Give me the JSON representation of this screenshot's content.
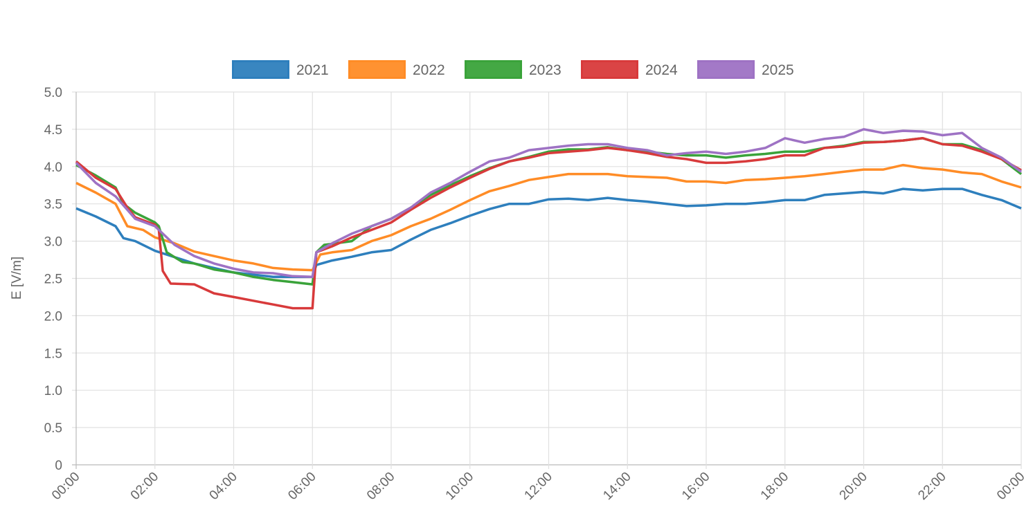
{
  "chart_data": {
    "type": "line",
    "title": "",
    "xlabel": "",
    "ylabel": "E [V/m]",
    "xlim": [
      0,
      24
    ],
    "ylim": [
      0,
      5
    ],
    "grid": true,
    "legend_position": "top-center",
    "x_tick_labels": [
      "00:00",
      "02:00",
      "04:00",
      "06:00",
      "08:00",
      "10:00",
      "12:00",
      "14:00",
      "16:00",
      "18:00",
      "20:00",
      "22:00",
      "00:00"
    ],
    "y_tick_labels": [
      "0",
      "0.5",
      "1.0",
      "1.5",
      "2.0",
      "2.5",
      "3.0",
      "3.5",
      "4.0",
      "4.5",
      "5.0"
    ],
    "x_unit": "hours",
    "series": [
      {
        "name": "2021",
        "color": "#2e7fbd",
        "points": [
          [
            0,
            3.44
          ],
          [
            0.5,
            3.33
          ],
          [
            1,
            3.2
          ],
          [
            1.2,
            3.04
          ],
          [
            1.5,
            3.0
          ],
          [
            2,
            2.87
          ],
          [
            3,
            2.7
          ],
          [
            4,
            2.58
          ],
          [
            5,
            2.52
          ],
          [
            6,
            2.52
          ],
          [
            6.1,
            2.68
          ],
          [
            6.5,
            2.74
          ],
          [
            7,
            2.79
          ],
          [
            7.5,
            2.85
          ],
          [
            8,
            2.88
          ],
          [
            8.5,
            3.02
          ],
          [
            9,
            3.15
          ],
          [
            9.5,
            3.24
          ],
          [
            10,
            3.34
          ],
          [
            10.5,
            3.43
          ],
          [
            11,
            3.5
          ],
          [
            11.5,
            3.5
          ],
          [
            12,
            3.56
          ],
          [
            12.5,
            3.57
          ],
          [
            13,
            3.55
          ],
          [
            13.5,
            3.58
          ],
          [
            14,
            3.55
          ],
          [
            14.5,
            3.53
          ],
          [
            15,
            3.5
          ],
          [
            15.5,
            3.47
          ],
          [
            16,
            3.48
          ],
          [
            16.5,
            3.5
          ],
          [
            17,
            3.5
          ],
          [
            17.5,
            3.52
          ],
          [
            18,
            3.55
          ],
          [
            18.5,
            3.55
          ],
          [
            19,
            3.62
          ],
          [
            19.5,
            3.64
          ],
          [
            20,
            3.66
          ],
          [
            20.5,
            3.64
          ],
          [
            21,
            3.7
          ],
          [
            21.5,
            3.68
          ],
          [
            22,
            3.7
          ],
          [
            22.5,
            3.7
          ],
          [
            23,
            3.62
          ],
          [
            23.5,
            3.55
          ],
          [
            24,
            3.44
          ]
        ]
      },
      {
        "name": "2022",
        "color": "#ff8c26",
        "points": [
          [
            0,
            3.78
          ],
          [
            0.5,
            3.65
          ],
          [
            1,
            3.5
          ],
          [
            1.3,
            3.2
          ],
          [
            1.7,
            3.15
          ],
          [
            2,
            3.05
          ],
          [
            2.5,
            2.97
          ],
          [
            3,
            2.86
          ],
          [
            3.5,
            2.8
          ],
          [
            4,
            2.74
          ],
          [
            4.5,
            2.7
          ],
          [
            5,
            2.64
          ],
          [
            5.5,
            2.62
          ],
          [
            6,
            2.61
          ],
          [
            6.2,
            2.82
          ],
          [
            6.5,
            2.85
          ],
          [
            7,
            2.88
          ],
          [
            7.5,
            3.0
          ],
          [
            8,
            3.08
          ],
          [
            8.5,
            3.2
          ],
          [
            9,
            3.3
          ],
          [
            9.5,
            3.42
          ],
          [
            10,
            3.55
          ],
          [
            10.5,
            3.67
          ],
          [
            11,
            3.74
          ],
          [
            11.5,
            3.82
          ],
          [
            12,
            3.86
          ],
          [
            12.5,
            3.9
          ],
          [
            13,
            3.9
          ],
          [
            13.5,
            3.9
          ],
          [
            14,
            3.87
          ],
          [
            14.5,
            3.86
          ],
          [
            15,
            3.85
          ],
          [
            15.5,
            3.8
          ],
          [
            16,
            3.8
          ],
          [
            16.5,
            3.78
          ],
          [
            17,
            3.82
          ],
          [
            17.5,
            3.83
          ],
          [
            18,
            3.85
          ],
          [
            18.5,
            3.87
          ],
          [
            19,
            3.9
          ],
          [
            19.5,
            3.93
          ],
          [
            20,
            3.96
          ],
          [
            20.5,
            3.96
          ],
          [
            21,
            4.02
          ],
          [
            21.5,
            3.98
          ],
          [
            22,
            3.96
          ],
          [
            22.5,
            3.92
          ],
          [
            23,
            3.9
          ],
          [
            23.5,
            3.8
          ],
          [
            24,
            3.72
          ]
        ]
      },
      {
        "name": "2023",
        "color": "#3aa33a",
        "points": [
          [
            0,
            4.02
          ],
          [
            0.5,
            3.88
          ],
          [
            1,
            3.72
          ],
          [
            1.2,
            3.5
          ],
          [
            1.5,
            3.38
          ],
          [
            2,
            3.25
          ],
          [
            2.1,
            3.2
          ],
          [
            2.3,
            2.85
          ],
          [
            2.7,
            2.72
          ],
          [
            3,
            2.7
          ],
          [
            3.5,
            2.62
          ],
          [
            4,
            2.58
          ],
          [
            4.5,
            2.52
          ],
          [
            5,
            2.48
          ],
          [
            5.5,
            2.45
          ],
          [
            6,
            2.42
          ],
          [
            6.1,
            2.85
          ],
          [
            6.3,
            2.95
          ],
          [
            7,
            3.0
          ],
          [
            7.5,
            3.2
          ],
          [
            8,
            3.3
          ],
          [
            8.5,
            3.45
          ],
          [
            9,
            3.62
          ],
          [
            9.5,
            3.75
          ],
          [
            10,
            3.87
          ],
          [
            10.5,
            3.98
          ],
          [
            11,
            4.07
          ],
          [
            11.5,
            4.13
          ],
          [
            12,
            4.2
          ],
          [
            12.5,
            4.23
          ],
          [
            13,
            4.23
          ],
          [
            13.5,
            4.26
          ],
          [
            14,
            4.22
          ],
          [
            14.5,
            4.2
          ],
          [
            15,
            4.17
          ],
          [
            15.5,
            4.15
          ],
          [
            16,
            4.15
          ],
          [
            16.5,
            4.12
          ],
          [
            17,
            4.15
          ],
          [
            17.5,
            4.17
          ],
          [
            18,
            4.2
          ],
          [
            18.5,
            4.2
          ],
          [
            19,
            4.25
          ],
          [
            19.5,
            4.28
          ],
          [
            20,
            4.33
          ],
          [
            20.5,
            4.33
          ],
          [
            21,
            4.35
          ],
          [
            21.5,
            4.38
          ],
          [
            22,
            4.3
          ],
          [
            22.5,
            4.3
          ],
          [
            23,
            4.22
          ],
          [
            23.5,
            4.1
          ],
          [
            24,
            3.9
          ]
        ]
      },
      {
        "name": "2024",
        "color": "#d83a3b",
        "points": [
          [
            0,
            4.07
          ],
          [
            0.5,
            3.85
          ],
          [
            1,
            3.7
          ],
          [
            1.3,
            3.45
          ],
          [
            1.5,
            3.32
          ],
          [
            2,
            3.22
          ],
          [
            2.1,
            3.15
          ],
          [
            2.2,
            2.6
          ],
          [
            2.4,
            2.43
          ],
          [
            3,
            2.42
          ],
          [
            3.5,
            2.3
          ],
          [
            4,
            2.25
          ],
          [
            4.5,
            2.2
          ],
          [
            5,
            2.15
          ],
          [
            5.5,
            2.1
          ],
          [
            6,
            2.1
          ],
          [
            6.1,
            2.85
          ],
          [
            6.5,
            2.93
          ],
          [
            7,
            3.05
          ],
          [
            7.5,
            3.15
          ],
          [
            8,
            3.25
          ],
          [
            8.5,
            3.42
          ],
          [
            9,
            3.58
          ],
          [
            9.5,
            3.72
          ],
          [
            10,
            3.85
          ],
          [
            10.5,
            3.97
          ],
          [
            11,
            4.07
          ],
          [
            11.5,
            4.12
          ],
          [
            12,
            4.18
          ],
          [
            12.5,
            4.2
          ],
          [
            13,
            4.22
          ],
          [
            13.5,
            4.25
          ],
          [
            14,
            4.22
          ],
          [
            14.5,
            4.18
          ],
          [
            15,
            4.13
          ],
          [
            15.5,
            4.1
          ],
          [
            16,
            4.05
          ],
          [
            16.5,
            4.05
          ],
          [
            17,
            4.07
          ],
          [
            17.5,
            4.1
          ],
          [
            18,
            4.15
          ],
          [
            18.5,
            4.15
          ],
          [
            19,
            4.25
          ],
          [
            19.5,
            4.27
          ],
          [
            20,
            4.32
          ],
          [
            20.5,
            4.33
          ],
          [
            21,
            4.35
          ],
          [
            21.5,
            4.38
          ],
          [
            22,
            4.3
          ],
          [
            22.5,
            4.28
          ],
          [
            23,
            4.2
          ],
          [
            23.5,
            4.1
          ],
          [
            24,
            3.95
          ]
        ]
      },
      {
        "name": "2025",
        "color": "#9e72c4",
        "points": [
          [
            0,
            4.05
          ],
          [
            0.5,
            3.78
          ],
          [
            1,
            3.6
          ],
          [
            1.5,
            3.3
          ],
          [
            2,
            3.2
          ],
          [
            2.5,
            2.95
          ],
          [
            3,
            2.8
          ],
          [
            3.5,
            2.7
          ],
          [
            4,
            2.63
          ],
          [
            4.5,
            2.58
          ],
          [
            5,
            2.57
          ],
          [
            5.5,
            2.53
          ],
          [
            6,
            2.52
          ],
          [
            6.1,
            2.85
          ],
          [
            6.5,
            2.97
          ],
          [
            7,
            3.1
          ],
          [
            7.5,
            3.2
          ],
          [
            8,
            3.3
          ],
          [
            8.5,
            3.45
          ],
          [
            9,
            3.65
          ],
          [
            9.5,
            3.78
          ],
          [
            10,
            3.93
          ],
          [
            10.5,
            4.07
          ],
          [
            11,
            4.12
          ],
          [
            11.5,
            4.22
          ],
          [
            12,
            4.25
          ],
          [
            12.5,
            4.28
          ],
          [
            13,
            4.3
          ],
          [
            13.5,
            4.3
          ],
          [
            14,
            4.25
          ],
          [
            14.5,
            4.22
          ],
          [
            15,
            4.15
          ],
          [
            15.5,
            4.18
          ],
          [
            16,
            4.2
          ],
          [
            16.5,
            4.17
          ],
          [
            17,
            4.2
          ],
          [
            17.5,
            4.25
          ],
          [
            18,
            4.38
          ],
          [
            18.5,
            4.32
          ],
          [
            19,
            4.37
          ],
          [
            19.5,
            4.4
          ],
          [
            20,
            4.5
          ],
          [
            20.5,
            4.45
          ],
          [
            21,
            4.48
          ],
          [
            21.5,
            4.47
          ],
          [
            22,
            4.42
          ],
          [
            22.5,
            4.45
          ],
          [
            23,
            4.25
          ],
          [
            23.5,
            4.12
          ],
          [
            24,
            3.93
          ]
        ]
      }
    ]
  }
}
